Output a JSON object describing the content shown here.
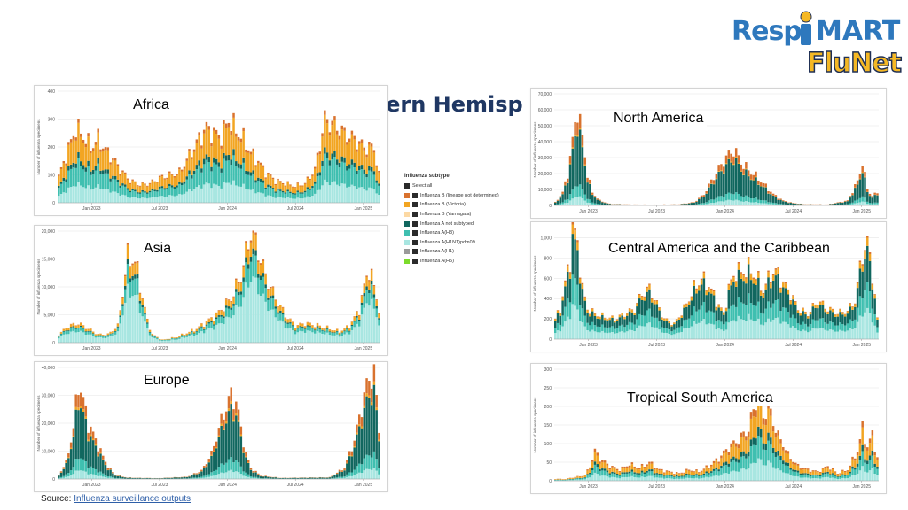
{
  "heading": "nern Hemisp",
  "logo": {
    "resp": "Resp",
    "mart": "MART",
    "flunet": "FluNet"
  },
  "source": {
    "prefix": "Source: ",
    "link": "Influenza surveillance outputs"
  },
  "legend": {
    "title": "Influenza subtype",
    "select_all": "Select all",
    "items": [
      {
        "name": "Influenza B (lineage not determined)",
        "color": "#d9722e"
      },
      {
        "name": "Influenza B (Victoria)",
        "color": "#f2a522"
      },
      {
        "name": "Influenza B (Yamagata)",
        "color": "#fcd9a4"
      },
      {
        "name": "Influenza A not subtyped",
        "color": "#11675f"
      },
      {
        "name": "Influenza A(H3)",
        "color": "#3fbfb0"
      },
      {
        "name": "Influenza A(H1N1)pdm09",
        "color": "#a8e6e1"
      },
      {
        "name": "Influenza A(H1)",
        "color": "#9a9a9a"
      },
      {
        "name": "Influenza A(H5)",
        "color": "#7cdb2b"
      }
    ]
  },
  "chart_data": [
    {
      "type": "bar",
      "stacked": true,
      "region": "Africa",
      "ylabel": "Number of influenza specimens",
      "yticks": [
        0,
        100,
        200,
        300,
        400
      ],
      "ylim": [
        0,
        400
      ],
      "xticks": [
        "Jan 2023",
        "Jul 2023",
        "Jan 2024",
        "Jul 2024",
        "Jan 2025"
      ],
      "x_range": [
        "Oct 2022",
        "Feb 2025"
      ],
      "peaks": [
        [
          0,
          95
        ],
        [
          3,
          170
        ],
        [
          7,
          270
        ],
        [
          10,
          240
        ],
        [
          13,
          200
        ],
        [
          16,
          230
        ],
        [
          19,
          190
        ],
        [
          22,
          160
        ],
        [
          25,
          120
        ],
        [
          29,
          80
        ],
        [
          33,
          65
        ],
        [
          37,
          70
        ],
        [
          41,
          90
        ],
        [
          45,
          100
        ],
        [
          49,
          110
        ],
        [
          53,
          170
        ],
        [
          57,
          230
        ],
        [
          60,
          270
        ],
        [
          63,
          250
        ],
        [
          66,
          240
        ],
        [
          69,
          300
        ],
        [
          72,
          260
        ],
        [
          75,
          230
        ],
        [
          78,
          180
        ],
        [
          81,
          150
        ],
        [
          84,
          110
        ],
        [
          88,
          80
        ],
        [
          92,
          70
        ],
        [
          96,
          60
        ],
        [
          100,
          70
        ],
        [
          104,
          120
        ],
        [
          108,
          300
        ],
        [
          112,
          280
        ],
        [
          116,
          250
        ],
        [
          120,
          230
        ],
        [
          124,
          200
        ],
        [
          128,
          200
        ],
        [
          130,
          100
        ]
      ],
      "mix": [
        0.05,
        0.35,
        0.0,
        0.07,
        0.28,
        0.25
      ]
    },
    {
      "type": "bar",
      "stacked": true,
      "region": "North America",
      "ylabel": "Number of influenza specimens",
      "yticks": [
        0,
        10000,
        20000,
        30000,
        40000,
        50000,
        60000,
        70000
      ],
      "ylim": [
        0,
        70000
      ],
      "ytick_labels": [
        "0",
        "10,000",
        "20,000",
        "30,000",
        "40,000",
        "50,000",
        "60,000",
        "70,000"
      ],
      "xticks": [
        "Jan 2023",
        "Jul 2023",
        "Jan 2024",
        "Jul 2024",
        "Jan 2025"
      ],
      "x_range": [
        "Oct 2022",
        "Feb 2025"
      ],
      "peaks": [
        [
          0,
          2000
        ],
        [
          3,
          8000
        ],
        [
          5,
          20000
        ],
        [
          7,
          40000
        ],
        [
          9,
          62000
        ],
        [
          11,
          42000
        ],
        [
          13,
          20000
        ],
        [
          15,
          8000
        ],
        [
          18,
          3000
        ],
        [
          22,
          1000
        ],
        [
          30,
          600
        ],
        [
          40,
          500
        ],
        [
          50,
          700
        ],
        [
          56,
          2000
        ],
        [
          60,
          7000
        ],
        [
          64,
          18000
        ],
        [
          68,
          28000
        ],
        [
          70,
          32000
        ],
        [
          72,
          35000
        ],
        [
          74,
          30000
        ],
        [
          76,
          25000
        ],
        [
          79,
          21000
        ],
        [
          82,
          17000
        ],
        [
          85,
          12000
        ],
        [
          88,
          7000
        ],
        [
          92,
          3000
        ],
        [
          96,
          1500
        ],
        [
          100,
          800
        ],
        [
          110,
          600
        ],
        [
          118,
          3000
        ],
        [
          122,
          15000
        ],
        [
          124,
          27000
        ],
        [
          126,
          10000
        ],
        [
          128,
          6000
        ],
        [
          130,
          8000
        ]
      ],
      "mix": [
        0.15,
        0.02,
        0.0,
        0.6,
        0.13,
        0.1
      ]
    },
    {
      "type": "bar",
      "stacked": true,
      "region": "Asia",
      "ylabel": "Number of influenza specimens",
      "yticks": [
        0,
        5000,
        10000,
        15000,
        20000
      ],
      "ylim": [
        0,
        20000
      ],
      "ytick_labels": [
        "0",
        "5,000",
        "10,000",
        "15,000",
        "20,000"
      ],
      "xticks": [
        "Jan 2023",
        "Jul 2023",
        "Jan 2024",
        "Jul 2024",
        "Jan 2025"
      ],
      "x_range": [
        "Oct 2022",
        "Feb 2025"
      ],
      "peaks": [
        [
          0,
          1500
        ],
        [
          4,
          3000
        ],
        [
          8,
          3500
        ],
        [
          12,
          2500
        ],
        [
          16,
          1500
        ],
        [
          20,
          1500
        ],
        [
          24,
          3000
        ],
        [
          26,
          9000
        ],
        [
          28,
          15500
        ],
        [
          30,
          15000
        ],
        [
          32,
          13000
        ],
        [
          34,
          8000
        ],
        [
          36,
          4000
        ],
        [
          38,
          1500
        ],
        [
          42,
          500
        ],
        [
          48,
          1000
        ],
        [
          56,
          2500
        ],
        [
          64,
          5000
        ],
        [
          70,
          8000
        ],
        [
          74,
          12000
        ],
        [
          76,
          16000
        ],
        [
          78,
          20000
        ],
        [
          80,
          18000
        ],
        [
          82,
          15000
        ],
        [
          84,
          12000
        ],
        [
          86,
          10000
        ],
        [
          88,
          8000
        ],
        [
          92,
          5000
        ],
        [
          96,
          3000
        ],
        [
          100,
          3500
        ],
        [
          106,
          3000
        ],
        [
          110,
          2500
        ],
        [
          114,
          2000
        ],
        [
          118,
          3000
        ],
        [
          122,
          6000
        ],
        [
          124,
          10000
        ],
        [
          126,
          13500
        ],
        [
          128,
          10000
        ],
        [
          130,
          6000
        ]
      ],
      "mix": [
        0.02,
        0.14,
        0.0,
        0.05,
        0.2,
        0.59
      ]
    },
    {
      "type": "bar",
      "stacked": true,
      "region": "Central America and the Caribbean",
      "ylabel": "Number of influenza specimens",
      "yticks": [
        0,
        200,
        400,
        600,
        800,
        1000
      ],
      "ylim": [
        0,
        1100
      ],
      "ytick_labels": [
        "0",
        "200",
        "400",
        "600",
        "800",
        "1,000"
      ],
      "xticks": [
        "Jan 2023",
        "Jul 2023",
        "Jan 2024",
        "Jul 2024",
        "Jan 2025"
      ],
      "x_range": [
        "Oct 2022",
        "Feb 2025"
      ],
      "peaks": [
        [
          0,
          200
        ],
        [
          2,
          300
        ],
        [
          4,
          550
        ],
        [
          6,
          800
        ],
        [
          7,
          1100
        ],
        [
          9,
          950
        ],
        [
          11,
          500
        ],
        [
          13,
          300
        ],
        [
          16,
          250
        ],
        [
          20,
          220
        ],
        [
          24,
          200
        ],
        [
          28,
          250
        ],
        [
          32,
          300
        ],
        [
          35,
          450
        ],
        [
          38,
          500
        ],
        [
          41,
          350
        ],
        [
          44,
          200
        ],
        [
          48,
          150
        ],
        [
          52,
          300
        ],
        [
          56,
          500
        ],
        [
          59,
          600
        ],
        [
          62,
          530
        ],
        [
          65,
          380
        ],
        [
          68,
          250
        ],
        [
          70,
          500
        ],
        [
          73,
          680
        ],
        [
          75,
          650
        ],
        [
          78,
          700
        ],
        [
          81,
          620
        ],
        [
          84,
          480
        ],
        [
          87,
          650
        ],
        [
          90,
          660
        ],
        [
          92,
          550
        ],
        [
          95,
          450
        ],
        [
          98,
          300
        ],
        [
          102,
          250
        ],
        [
          106,
          380
        ],
        [
          110,
          300
        ],
        [
          114,
          260
        ],
        [
          118,
          280
        ],
        [
          121,
          380
        ],
        [
          124,
          850
        ],
        [
          126,
          950
        ],
        [
          128,
          650
        ],
        [
          130,
          200
        ]
      ],
      "mix": [
        0.02,
        0.08,
        0.0,
        0.35,
        0.25,
        0.3
      ]
    },
    {
      "type": "bar",
      "stacked": true,
      "region": "Europe",
      "ylabel": "Number of influenza specimens",
      "yticks": [
        0,
        10000,
        20000,
        30000,
        40000
      ],
      "ylim": [
        0,
        40000
      ],
      "ytick_labels": [
        "0",
        "10,000",
        "20,000",
        "30,000",
        "40,000"
      ],
      "xticks": [
        "Jan 2023",
        "Jul 2023",
        "Jan 2024",
        "Jul 2024",
        "Jan 2025"
      ],
      "x_range": [
        "Oct 2022",
        "Feb 2025"
      ],
      "peaks": [
        [
          0,
          1500
        ],
        [
          3,
          6000
        ],
        [
          6,
          18000
        ],
        [
          8,
          35000
        ],
        [
          10,
          28000
        ],
        [
          12,
          20000
        ],
        [
          14,
          16000
        ],
        [
          16,
          12000
        ],
        [
          18,
          8000
        ],
        [
          20,
          4500
        ],
        [
          23,
          1500
        ],
        [
          28,
          500
        ],
        [
          40,
          300
        ],
        [
          52,
          800
        ],
        [
          58,
          3000
        ],
        [
          62,
          9000
        ],
        [
          65,
          18000
        ],
        [
          68,
          26000
        ],
        [
          70,
          30000
        ],
        [
          72,
          28000
        ],
        [
          74,
          18000
        ],
        [
          76,
          9000
        ],
        [
          78,
          4000
        ],
        [
          82,
          1200
        ],
        [
          90,
          400
        ],
        [
          110,
          600
        ],
        [
          116,
          4000
        ],
        [
          120,
          14000
        ],
        [
          122,
          22000
        ],
        [
          124,
          30000
        ],
        [
          126,
          36000
        ],
        [
          128,
          38000
        ],
        [
          130,
          18000
        ]
      ],
      "mix": [
        0.15,
        0.03,
        0.0,
        0.58,
        0.14,
        0.1
      ]
    },
    {
      "type": "bar",
      "stacked": true,
      "region": "Tropical South America",
      "ylabel": "Number of influenza specimens",
      "yticks": [
        0,
        50,
        100,
        150,
        200,
        250,
        300
      ],
      "ylim": [
        0,
        300
      ],
      "xticks": [
        "Jan 2023",
        "Jul 2023",
        "Jan 2024",
        "Jul 2024",
        "Jan 2025"
      ],
      "x_range": [
        "Oct 2022",
        "Feb 2025"
      ],
      "peaks": [
        [
          0,
          5
        ],
        [
          4,
          5
        ],
        [
          8,
          10
        ],
        [
          12,
          15
        ],
        [
          14,
          40
        ],
        [
          16,
          80
        ],
        [
          18,
          60
        ],
        [
          20,
          50
        ],
        [
          22,
          40
        ],
        [
          26,
          30
        ],
        [
          30,
          45
        ],
        [
          34,
          35
        ],
        [
          38,
          50
        ],
        [
          42,
          30
        ],
        [
          46,
          25
        ],
        [
          50,
          20
        ],
        [
          54,
          30
        ],
        [
          58,
          25
        ],
        [
          62,
          40
        ],
        [
          66,
          60
        ],
        [
          70,
          90
        ],
        [
          74,
          110
        ],
        [
          78,
          140
        ],
        [
          80,
          190
        ],
        [
          82,
          240
        ],
        [
          84,
          175
        ],
        [
          86,
          200
        ],
        [
          88,
          160
        ],
        [
          90,
          120
        ],
        [
          92,
          100
        ],
        [
          94,
          70
        ],
        [
          98,
          40
        ],
        [
          102,
          30
        ],
        [
          106,
          25
        ],
        [
          110,
          40
        ],
        [
          114,
          20
        ],
        [
          118,
          30
        ],
        [
          122,
          80
        ],
        [
          124,
          140
        ],
        [
          126,
          90
        ],
        [
          128,
          125
        ],
        [
          130,
          60
        ]
      ],
      "mix": [
        0.1,
        0.3,
        0.0,
        0.1,
        0.25,
        0.25
      ]
    }
  ]
}
